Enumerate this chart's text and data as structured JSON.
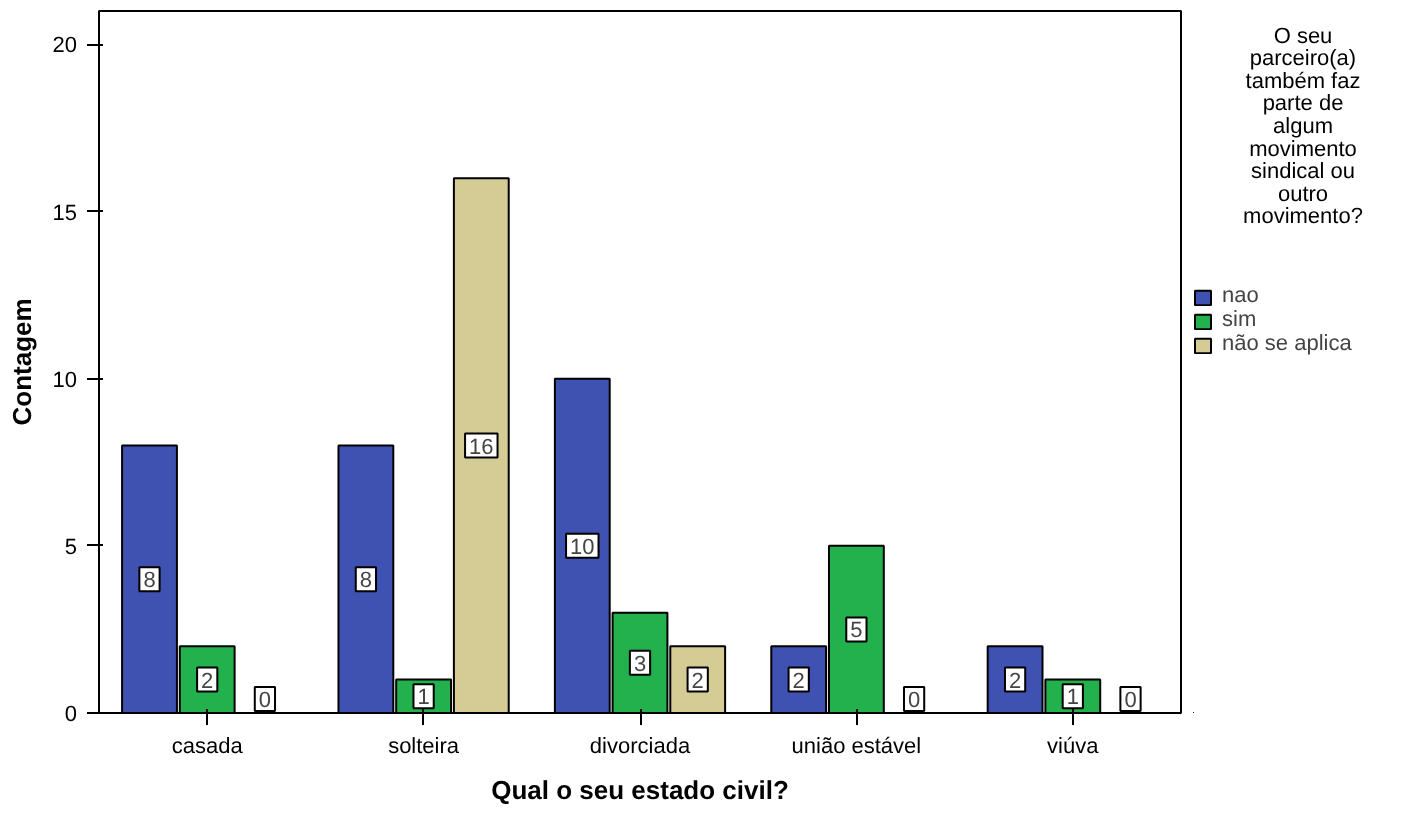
{
  "chart_data": {
    "type": "bar",
    "xlabel": "Qual o seu estado civil?",
    "ylabel": "Contagem",
    "legend_title": "O seu parceiro(a) também faz parte de algum movimento sindical ou outro movimento?",
    "categories": [
      "casada",
      "solteira",
      "divorciada",
      "união estável",
      "viúva"
    ],
    "series": [
      {
        "name": "nao",
        "color": "#3f51b1",
        "values": [
          8,
          8,
          10,
          2,
          2
        ]
      },
      {
        "name": "sim",
        "color": "#22b14c",
        "values": [
          2,
          1,
          3,
          5,
          1
        ]
      },
      {
        "name": "não se aplica",
        "color": "#d4cc94",
        "values": [
          0,
          16,
          2,
          0,
          0
        ]
      }
    ],
    "ylim": [
      0,
      21
    ],
    "yticks": [
      0,
      5,
      10,
      15,
      20
    ],
    "grid": false,
    "legend": "right",
    "data_labels": true
  }
}
